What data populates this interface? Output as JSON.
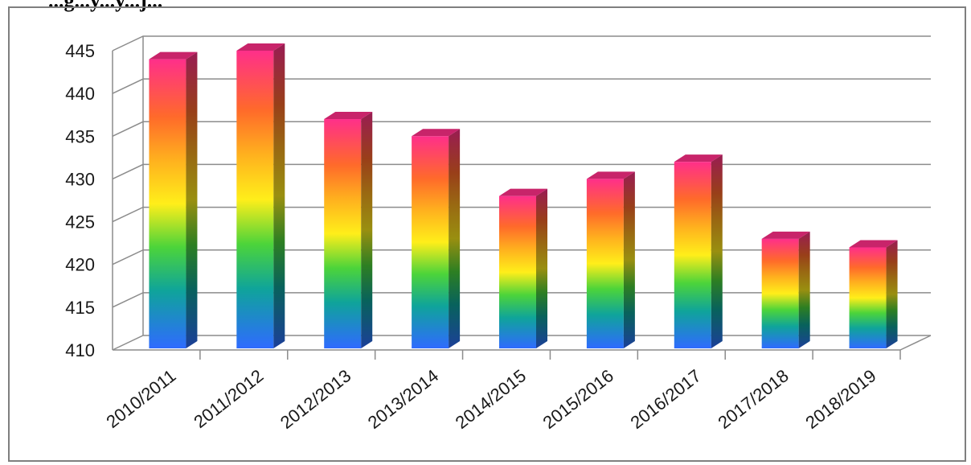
{
  "page": {
    "title_fragment": "...g...y...y...j..."
  },
  "chart_data": {
    "type": "bar",
    "style": "3d-column-rainbow-gradient",
    "title": "",
    "xlabel": "",
    "ylabel": "",
    "categories": [
      "2010/2011",
      "2011/2012",
      "2012/2013",
      "2013/2014",
      "2014/2015",
      "2015/2016",
      "2016/2017",
      "2017/2018",
      "2018/2019"
    ],
    "values": [
      444,
      445,
      437,
      435,
      428,
      430,
      432,
      423,
      422
    ],
    "ylim": [
      410,
      445
    ],
    "yticks": [
      410,
      415,
      420,
      425,
      430,
      435,
      440,
      445
    ],
    "grid": true,
    "legend": "none",
    "colors": {
      "gradient_bottom": "#2f6bff",
      "gradient_teal": "#0fa49a",
      "gradient_yellow": "#ffee1a",
      "gradient_orange": "#ff6a2a",
      "gradient_top": "#ff2f8a",
      "grid": "#8c8c8c"
    }
  }
}
